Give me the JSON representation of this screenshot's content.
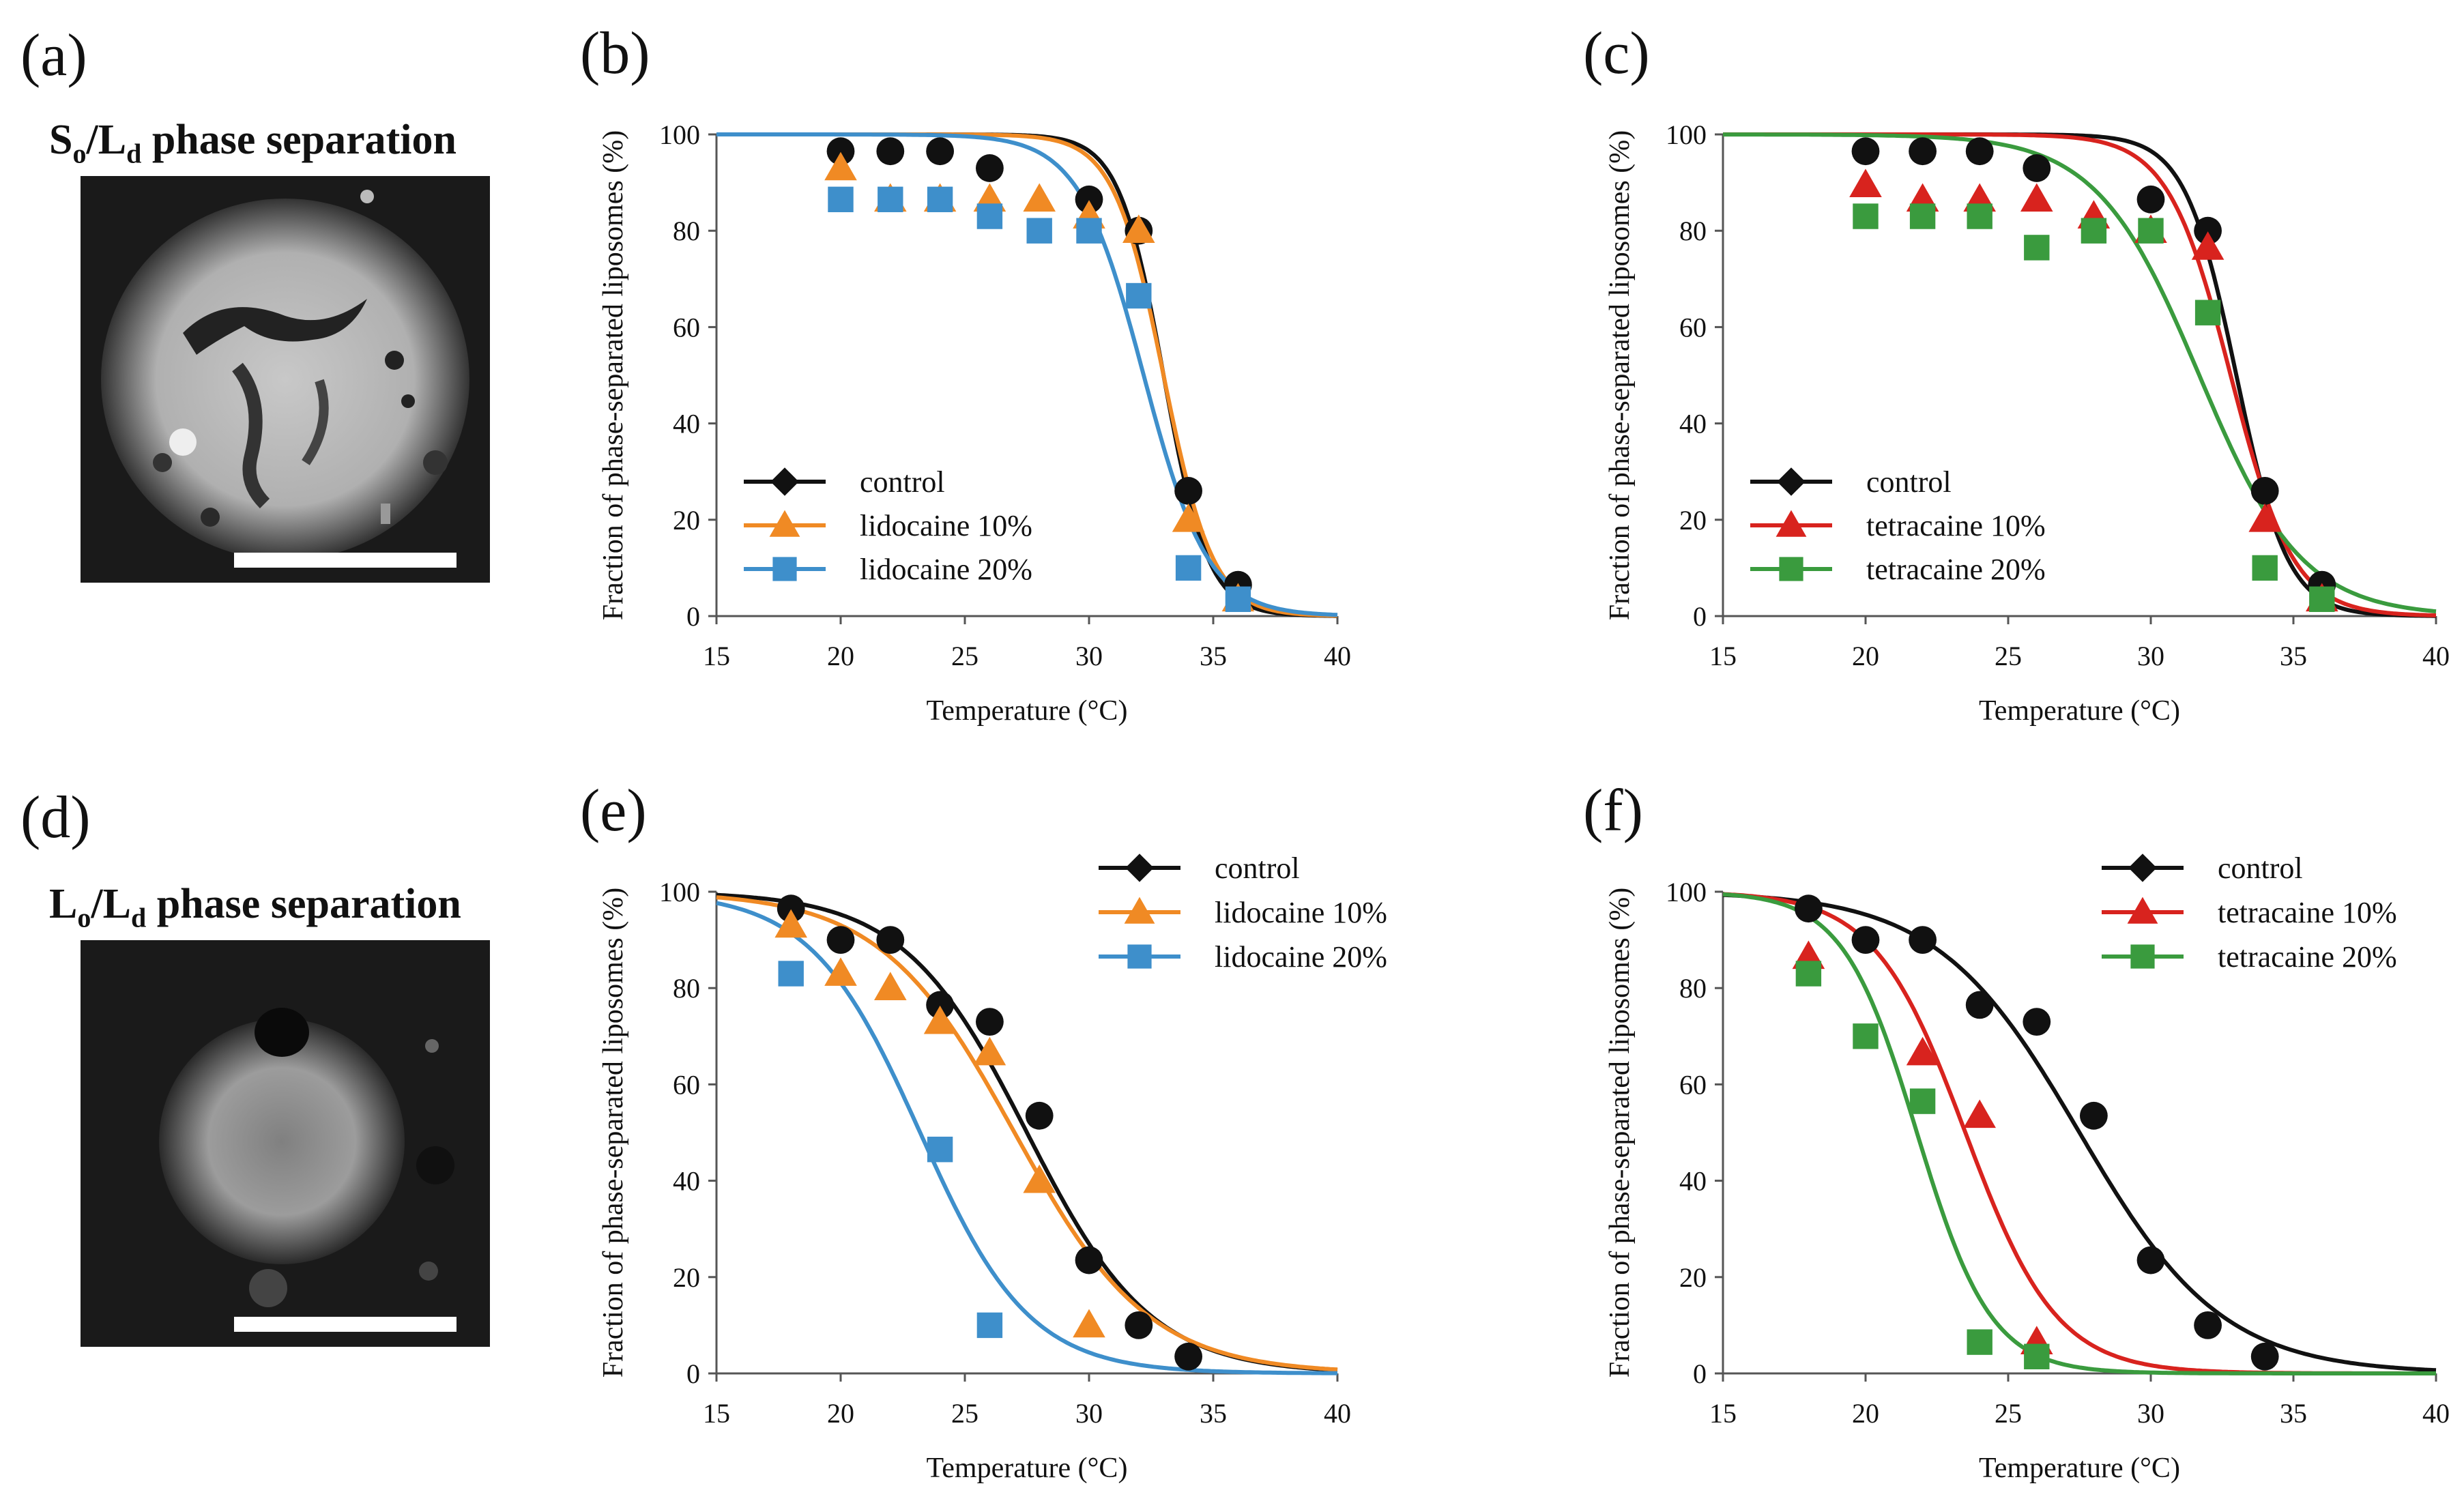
{
  "panels": {
    "a": {
      "letter": "(a)",
      "title_main1": "S",
      "title_sub1": "o",
      "title_slash": "/L",
      "title_sub2": "d",
      "title_rest": " phase separation",
      "image_desc": "fluorescence micrograph"
    },
    "d": {
      "letter": "(d)",
      "title_main1": "L",
      "title_sub1": "o",
      "title_slash": "/L",
      "title_sub2": "d",
      "title_rest": " phase separation",
      "image_desc": "fluorescence micrograph"
    }
  },
  "chart_data": [
    {
      "id": "b",
      "letter": "(b)",
      "type": "scatter+line",
      "xlabel": "Temperature (°C)",
      "ylabel": "Fraction of phase-separated liposomes (%)",
      "xlim": [
        15,
        40
      ],
      "ylim": [
        0,
        100
      ],
      "xticks": [
        15,
        20,
        25,
        30,
        35,
        40
      ],
      "yticks": [
        0,
        20,
        40,
        60,
        80,
        100
      ],
      "legend_position": "bottom-left",
      "series": [
        {
          "name": "control",
          "color": "#111111",
          "marker": "circle",
          "legend_marker": "diamond",
          "x": [
            20,
            22,
            24,
            26,
            30,
            32,
            34,
            36
          ],
          "y": [
            96.5,
            96.5,
            96.5,
            93,
            86.5,
            80,
            26,
            6.5
          ],
          "fit": {
            "top": 100,
            "tm": 33.0,
            "slope": 0.9
          }
        },
        {
          "name": "lidocaine 10%",
          "color": "#f08a24",
          "marker": "triangle",
          "legend_marker": "triangle",
          "x": [
            20,
            22,
            24,
            26,
            28,
            30,
            32,
            34,
            36
          ],
          "y": [
            93,
            86.5,
            86.5,
            86.5,
            86.5,
            83,
            80,
            20,
            3.5
          ],
          "fit": {
            "top": 100,
            "tm": 33.0,
            "slope": 1.0
          }
        },
        {
          "name": "lidocaine 20%",
          "color": "#3e8fcb",
          "marker": "square",
          "legend_marker": "square",
          "x": [
            20,
            22,
            24,
            26,
            28,
            30,
            32,
            34,
            36
          ],
          "y": [
            86.5,
            86.5,
            86.5,
            83,
            80,
            80,
            66.5,
            10,
            3.5
          ],
          "fit": {
            "top": 100,
            "tm": 32.2,
            "slope": 1.3
          }
        }
      ]
    },
    {
      "id": "c",
      "letter": "(c)",
      "type": "scatter+line",
      "xlabel": "Temperature (°C)",
      "ylabel": "Fraction of phase-separated liposomes (%)",
      "xlim": [
        15,
        40
      ],
      "ylim": [
        0,
        100
      ],
      "xticks": [
        15,
        20,
        25,
        30,
        35,
        40
      ],
      "yticks": [
        0,
        20,
        40,
        60,
        80,
        100
      ],
      "legend_position": "bottom-left",
      "series": [
        {
          "name": "control",
          "color": "#111111",
          "marker": "circle",
          "legend_marker": "diamond",
          "x": [
            20,
            22,
            24,
            26,
            30,
            32,
            34,
            36
          ],
          "y": [
            96.5,
            96.5,
            96.5,
            93,
            86.5,
            80,
            26,
            6.5
          ],
          "fit": {
            "top": 100,
            "tm": 33.0,
            "slope": 0.9
          }
        },
        {
          "name": "tetracaine 10%",
          "color": "#d8231e",
          "marker": "triangle",
          "legend_marker": "triangle",
          "x": [
            20,
            22,
            24,
            26,
            28,
            30,
            32,
            34,
            36
          ],
          "y": [
            89.5,
            86.5,
            86.5,
            86.5,
            83,
            80,
            76.5,
            20,
            3.5
          ],
          "fit": {
            "top": 100,
            "tm": 32.8,
            "slope": 1.1
          }
        },
        {
          "name": "tetracaine 20%",
          "color": "#3a9b3e",
          "marker": "square",
          "legend_marker": "square",
          "x": [
            20,
            22,
            24,
            26,
            28,
            30,
            32,
            34,
            36
          ],
          "y": [
            83,
            83,
            83,
            76.5,
            80,
            80,
            63,
            10,
            3.5
          ],
          "fit": {
            "top": 100,
            "tm": 31.7,
            "slope": 1.8
          }
        }
      ]
    },
    {
      "id": "e",
      "letter": "(e)",
      "type": "scatter+line",
      "xlabel": "Temperature (°C)",
      "ylabel": "Fraction of phase-separated liposomes (%)",
      "xlim": [
        15,
        40
      ],
      "ylim": [
        0,
        100
      ],
      "xticks": [
        15,
        20,
        25,
        30,
        35,
        40
      ],
      "yticks": [
        0,
        20,
        40,
        60,
        80,
        100
      ],
      "legend_position": "top-right",
      "series": [
        {
          "name": "control",
          "color": "#111111",
          "marker": "circle",
          "legend_marker": "diamond",
          "x": [
            18,
            20,
            22,
            24,
            26,
            28,
            30,
            32,
            34
          ],
          "y": [
            96.5,
            90,
            90,
            76.5,
            73,
            53.5,
            23.5,
            10,
            3.5
          ],
          "fit": {
            "top": 100,
            "tm": 27.5,
            "slope": 2.5
          }
        },
        {
          "name": "lidocaine 10%",
          "color": "#f08a24",
          "marker": "triangle",
          "legend_marker": "triangle",
          "x": [
            18,
            20,
            22,
            24,
            26,
            28,
            30
          ],
          "y": [
            93,
            83,
            80,
            73,
            66.5,
            40,
            10
          ],
          "fit": {
            "top": 100,
            "tm": 27.0,
            "slope": 2.7
          }
        },
        {
          "name": "lidocaine 20%",
          "color": "#3e8fcb",
          "marker": "square",
          "legend_marker": "square",
          "x": [
            18,
            24,
            26
          ],
          "y": [
            83,
            46.5,
            10
          ],
          "fit": {
            "top": 100,
            "tm": 23.2,
            "slope": 2.2
          }
        }
      ]
    },
    {
      "id": "f",
      "letter": "(f)",
      "type": "scatter+line",
      "xlabel": "Temperature (°C)",
      "ylabel": "Fraction of phase-separated liposomes (%)",
      "xlim": [
        15,
        40
      ],
      "ylim": [
        0,
        100
      ],
      "xticks": [
        15,
        20,
        25,
        30,
        35,
        40
      ],
      "yticks": [
        0,
        20,
        40,
        60,
        80,
        100
      ],
      "legend_position": "top-right",
      "series": [
        {
          "name": "control",
          "color": "#111111",
          "marker": "circle",
          "legend_marker": "diamond",
          "x": [
            18,
            20,
            22,
            24,
            26,
            28,
            30,
            32,
            34
          ],
          "y": [
            96.5,
            90,
            90,
            76.5,
            73,
            53.5,
            23.5,
            10,
            3.5
          ],
          "fit": {
            "top": 100,
            "tm": 27.5,
            "slope": 2.5
          }
        },
        {
          "name": "tetracaine 10%",
          "color": "#d8231e",
          "marker": "triangle",
          "legend_marker": "triangle",
          "x": [
            18,
            22,
            24,
            26
          ],
          "y": [
            86.5,
            66.5,
            53.5,
            6.5
          ],
          "fit": {
            "top": 100,
            "tm": 23.5,
            "slope": 1.6
          }
        },
        {
          "name": "tetracaine 20%",
          "color": "#3a9b3e",
          "marker": "square",
          "legend_marker": "square",
          "x": [
            18,
            20,
            22,
            24,
            26
          ],
          "y": [
            83,
            70,
            56.5,
            6.5,
            3.5
          ],
          "fit": {
            "top": 100,
            "tm": 21.8,
            "slope": 1.3
          }
        }
      ]
    }
  ]
}
